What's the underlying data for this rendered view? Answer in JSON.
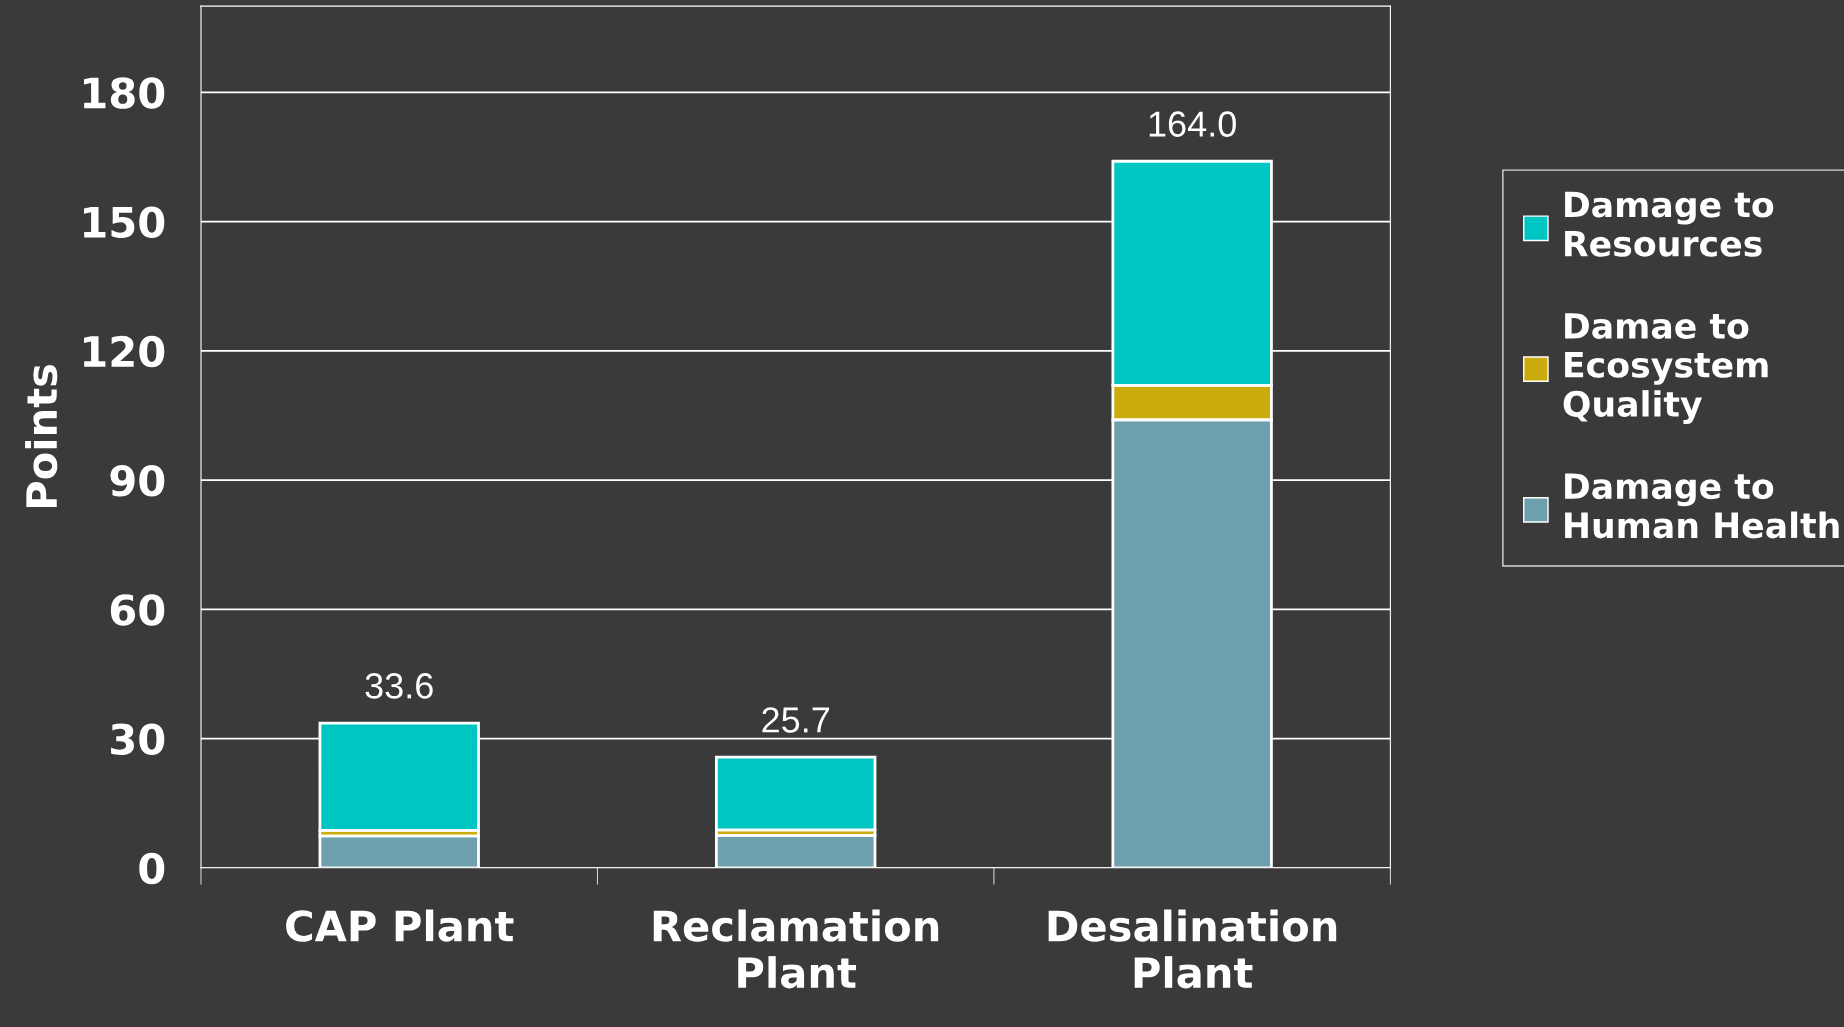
{
  "chart_data": {
    "type": "bar",
    "stacked": true,
    "ylabel": "Points",
    "categories": [
      "CAP Plant",
      "Reclamation Plant",
      "Desalination Plant"
    ],
    "series": [
      {
        "name": "Damage to Human Health",
        "color": "#6fa0ae",
        "values": [
          7.4,
          7.5,
          104
        ]
      },
      {
        "name": "Damae to Ecosystem Quality",
        "color": "#ccac0c",
        "values": [
          1.3,
          1.3,
          8
        ]
      },
      {
        "name": "Damage to Resources",
        "color": "#00c6c3",
        "values": [
          24.9,
          16.9,
          52
        ]
      }
    ],
    "totals": [
      "33.6",
      "25.7",
      "164.0"
    ],
    "ylim": [
      0,
      200
    ],
    "yticks": [
      0,
      30,
      60,
      90,
      120,
      150,
      180
    ],
    "grid": "y",
    "legend": "right"
  }
}
